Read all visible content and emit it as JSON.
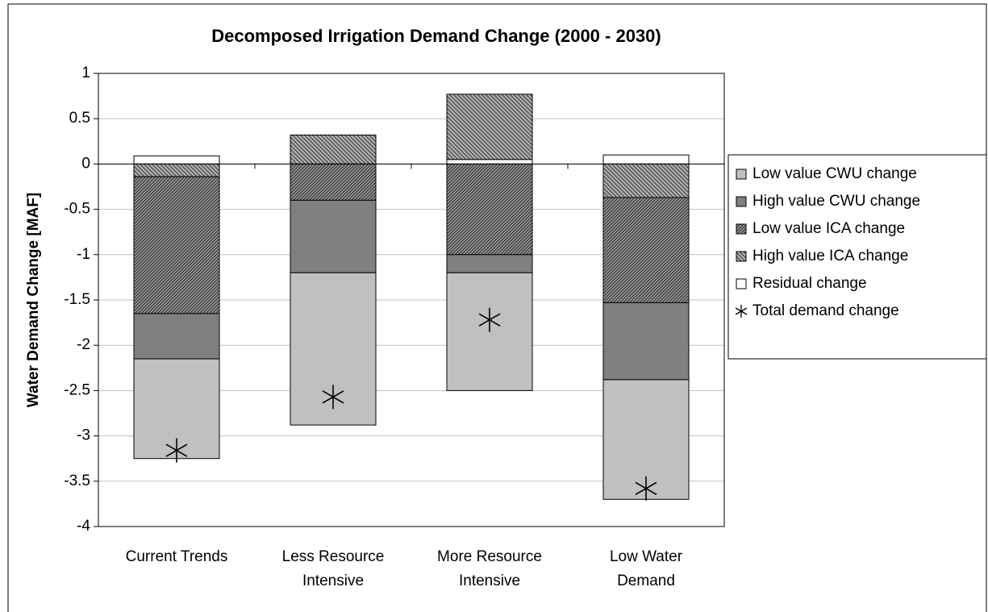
{
  "chart_data": {
    "type": "stacked_bar",
    "title": "Decomposed Irrigation Demand Change (2000 - 2030)",
    "y_label": "Water Demand Change [MAF]",
    "categories": [
      "Current Trends",
      "Less Resource\nIntensive",
      "More Resource\nIntensive",
      "Low Water\nDemand"
    ],
    "series": [
      {
        "name": "Low value CWU change",
        "color": "#c0c0c0",
        "values": [
          -1.1,
          -1.68,
          -1.3,
          -1.32
        ]
      },
      {
        "name": "High value CWU change",
        "color": "#808080",
        "values": [
          -0.5,
          -0.8,
          -0.2,
          -0.85
        ]
      },
      {
        "name": "Low value ICA change",
        "color": "#555555",
        "values": [
          -1.51,
          -0.4,
          -1.0,
          -1.16
        ]
      },
      {
        "name": "High value ICA change",
        "color": "#8a8a8a",
        "values": [
          -0.14,
          0.32,
          0.72,
          -0.37
        ]
      },
      {
        "name": "Residual change",
        "color": "#ffffff",
        "values": [
          0.09,
          0,
          0.05,
          0.1
        ]
      }
    ],
    "markers": {
      "name": "Total demand change",
      "color": "#000000",
      "values": [
        -3.16,
        -2.57,
        -1.72,
        -3.58
      ]
    },
    "ylim": [
      -4,
      1
    ],
    "yticks": [
      -4,
      -3.5,
      -3,
      -2.5,
      -2,
      -1.5,
      -1,
      -0.5,
      0,
      0.5,
      1
    ],
    "grid": true,
    "legend": "right"
  }
}
